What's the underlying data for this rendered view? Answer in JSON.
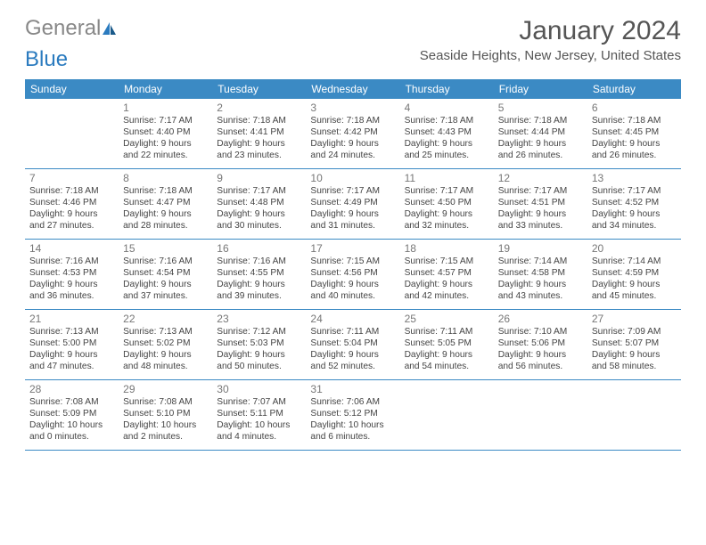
{
  "logo": {
    "part1": "General",
    "part2": "Blue"
  },
  "title": "January 2024",
  "location": "Seaside Heights, New Jersey, United States",
  "colors": {
    "header_bg": "#3b8ac4",
    "header_fg": "#ffffff",
    "border": "#3b8ac4",
    "text": "#444444",
    "daynum": "#777777",
    "title": "#555555",
    "logo_blue": "#2b7bbf"
  },
  "fonts": {
    "title_size": 30,
    "location_size": 15,
    "dayheader_size": 12,
    "daynum_size": 12,
    "info_size": 10.2
  },
  "day_headers": [
    "Sunday",
    "Monday",
    "Tuesday",
    "Wednesday",
    "Thursday",
    "Friday",
    "Saturday"
  ],
  "weeks": [
    [
      {
        "n": "",
        "sr": "",
        "ss": "",
        "d1": "",
        "d2": ""
      },
      {
        "n": "1",
        "sr": "Sunrise: 7:17 AM",
        "ss": "Sunset: 4:40 PM",
        "d1": "Daylight: 9 hours",
        "d2": "and 22 minutes."
      },
      {
        "n": "2",
        "sr": "Sunrise: 7:18 AM",
        "ss": "Sunset: 4:41 PM",
        "d1": "Daylight: 9 hours",
        "d2": "and 23 minutes."
      },
      {
        "n": "3",
        "sr": "Sunrise: 7:18 AM",
        "ss": "Sunset: 4:42 PM",
        "d1": "Daylight: 9 hours",
        "d2": "and 24 minutes."
      },
      {
        "n": "4",
        "sr": "Sunrise: 7:18 AM",
        "ss": "Sunset: 4:43 PM",
        "d1": "Daylight: 9 hours",
        "d2": "and 25 minutes."
      },
      {
        "n": "5",
        "sr": "Sunrise: 7:18 AM",
        "ss": "Sunset: 4:44 PM",
        "d1": "Daylight: 9 hours",
        "d2": "and 26 minutes."
      },
      {
        "n": "6",
        "sr": "Sunrise: 7:18 AM",
        "ss": "Sunset: 4:45 PM",
        "d1": "Daylight: 9 hours",
        "d2": "and 26 minutes."
      }
    ],
    [
      {
        "n": "7",
        "sr": "Sunrise: 7:18 AM",
        "ss": "Sunset: 4:46 PM",
        "d1": "Daylight: 9 hours",
        "d2": "and 27 minutes."
      },
      {
        "n": "8",
        "sr": "Sunrise: 7:18 AM",
        "ss": "Sunset: 4:47 PM",
        "d1": "Daylight: 9 hours",
        "d2": "and 28 minutes."
      },
      {
        "n": "9",
        "sr": "Sunrise: 7:17 AM",
        "ss": "Sunset: 4:48 PM",
        "d1": "Daylight: 9 hours",
        "d2": "and 30 minutes."
      },
      {
        "n": "10",
        "sr": "Sunrise: 7:17 AM",
        "ss": "Sunset: 4:49 PM",
        "d1": "Daylight: 9 hours",
        "d2": "and 31 minutes."
      },
      {
        "n": "11",
        "sr": "Sunrise: 7:17 AM",
        "ss": "Sunset: 4:50 PM",
        "d1": "Daylight: 9 hours",
        "d2": "and 32 minutes."
      },
      {
        "n": "12",
        "sr": "Sunrise: 7:17 AM",
        "ss": "Sunset: 4:51 PM",
        "d1": "Daylight: 9 hours",
        "d2": "and 33 minutes."
      },
      {
        "n": "13",
        "sr": "Sunrise: 7:17 AM",
        "ss": "Sunset: 4:52 PM",
        "d1": "Daylight: 9 hours",
        "d2": "and 34 minutes."
      }
    ],
    [
      {
        "n": "14",
        "sr": "Sunrise: 7:16 AM",
        "ss": "Sunset: 4:53 PM",
        "d1": "Daylight: 9 hours",
        "d2": "and 36 minutes."
      },
      {
        "n": "15",
        "sr": "Sunrise: 7:16 AM",
        "ss": "Sunset: 4:54 PM",
        "d1": "Daylight: 9 hours",
        "d2": "and 37 minutes."
      },
      {
        "n": "16",
        "sr": "Sunrise: 7:16 AM",
        "ss": "Sunset: 4:55 PM",
        "d1": "Daylight: 9 hours",
        "d2": "and 39 minutes."
      },
      {
        "n": "17",
        "sr": "Sunrise: 7:15 AM",
        "ss": "Sunset: 4:56 PM",
        "d1": "Daylight: 9 hours",
        "d2": "and 40 minutes."
      },
      {
        "n": "18",
        "sr": "Sunrise: 7:15 AM",
        "ss": "Sunset: 4:57 PM",
        "d1": "Daylight: 9 hours",
        "d2": "and 42 minutes."
      },
      {
        "n": "19",
        "sr": "Sunrise: 7:14 AM",
        "ss": "Sunset: 4:58 PM",
        "d1": "Daylight: 9 hours",
        "d2": "and 43 minutes."
      },
      {
        "n": "20",
        "sr": "Sunrise: 7:14 AM",
        "ss": "Sunset: 4:59 PM",
        "d1": "Daylight: 9 hours",
        "d2": "and 45 minutes."
      }
    ],
    [
      {
        "n": "21",
        "sr": "Sunrise: 7:13 AM",
        "ss": "Sunset: 5:00 PM",
        "d1": "Daylight: 9 hours",
        "d2": "and 47 minutes."
      },
      {
        "n": "22",
        "sr": "Sunrise: 7:13 AM",
        "ss": "Sunset: 5:02 PM",
        "d1": "Daylight: 9 hours",
        "d2": "and 48 minutes."
      },
      {
        "n": "23",
        "sr": "Sunrise: 7:12 AM",
        "ss": "Sunset: 5:03 PM",
        "d1": "Daylight: 9 hours",
        "d2": "and 50 minutes."
      },
      {
        "n": "24",
        "sr": "Sunrise: 7:11 AM",
        "ss": "Sunset: 5:04 PM",
        "d1": "Daylight: 9 hours",
        "d2": "and 52 minutes."
      },
      {
        "n": "25",
        "sr": "Sunrise: 7:11 AM",
        "ss": "Sunset: 5:05 PM",
        "d1": "Daylight: 9 hours",
        "d2": "and 54 minutes."
      },
      {
        "n": "26",
        "sr": "Sunrise: 7:10 AM",
        "ss": "Sunset: 5:06 PM",
        "d1": "Daylight: 9 hours",
        "d2": "and 56 minutes."
      },
      {
        "n": "27",
        "sr": "Sunrise: 7:09 AM",
        "ss": "Sunset: 5:07 PM",
        "d1": "Daylight: 9 hours",
        "d2": "and 58 minutes."
      }
    ],
    [
      {
        "n": "28",
        "sr": "Sunrise: 7:08 AM",
        "ss": "Sunset: 5:09 PM",
        "d1": "Daylight: 10 hours",
        "d2": "and 0 minutes."
      },
      {
        "n": "29",
        "sr": "Sunrise: 7:08 AM",
        "ss": "Sunset: 5:10 PM",
        "d1": "Daylight: 10 hours",
        "d2": "and 2 minutes."
      },
      {
        "n": "30",
        "sr": "Sunrise: 7:07 AM",
        "ss": "Sunset: 5:11 PM",
        "d1": "Daylight: 10 hours",
        "d2": "and 4 minutes."
      },
      {
        "n": "31",
        "sr": "Sunrise: 7:06 AM",
        "ss": "Sunset: 5:12 PM",
        "d1": "Daylight: 10 hours",
        "d2": "and 6 minutes."
      },
      {
        "n": "",
        "sr": "",
        "ss": "",
        "d1": "",
        "d2": ""
      },
      {
        "n": "",
        "sr": "",
        "ss": "",
        "d1": "",
        "d2": ""
      },
      {
        "n": "",
        "sr": "",
        "ss": "",
        "d1": "",
        "d2": ""
      }
    ]
  ]
}
